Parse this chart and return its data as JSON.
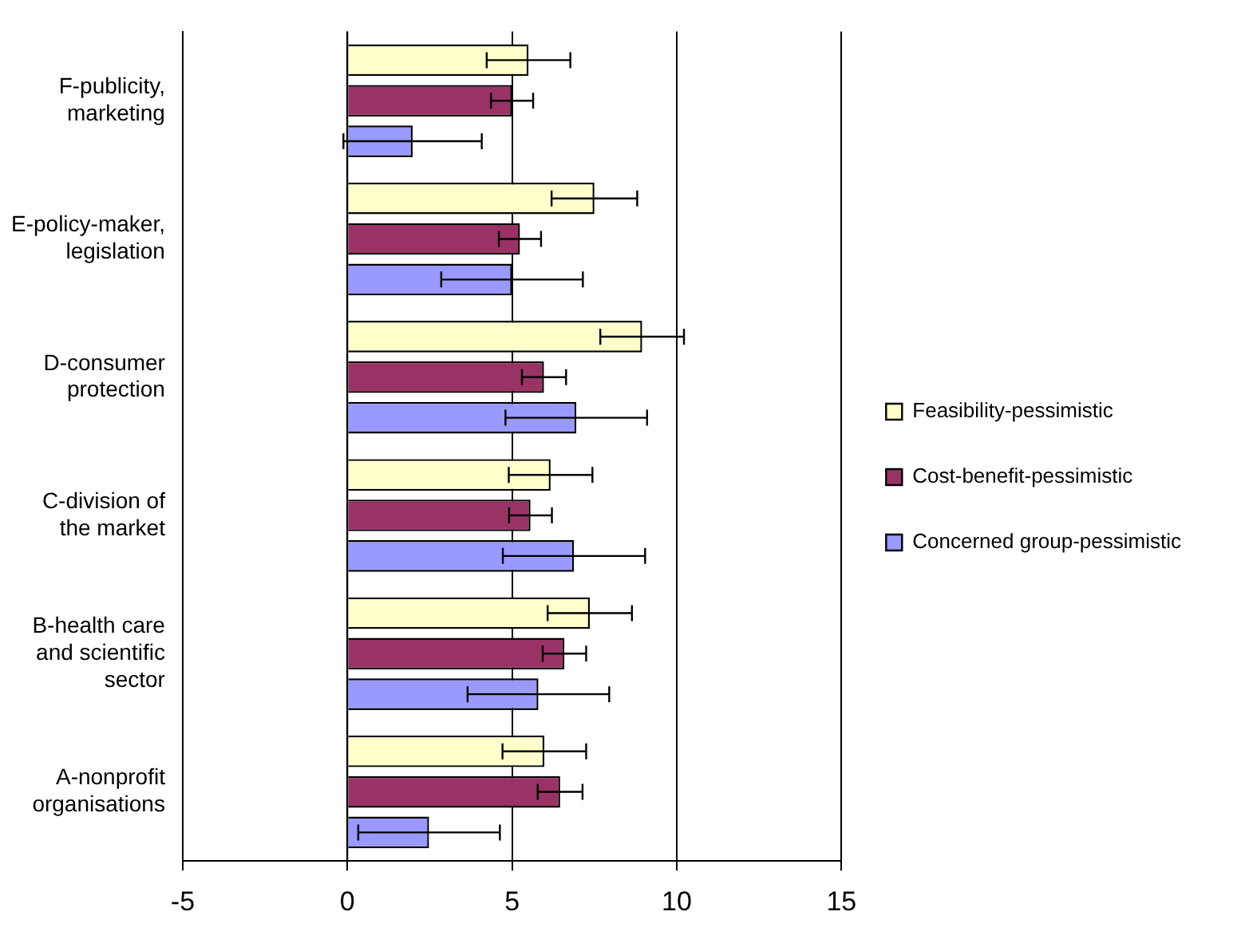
{
  "chart_data": {
    "type": "bar",
    "orientation": "horizontal",
    "categories": [
      "F-publicity, marketing",
      "E-policy-maker, legislation",
      "D-consumer protection",
      "C-division of the market",
      "B-health care and scientific sector",
      "A-nonprofit organisations"
    ],
    "series": [
      {
        "name": "Feasibility-pessimistic",
        "color": "#ffffcc",
        "values": [
          5.5,
          7.5,
          8.95,
          6.17,
          7.36,
          5.98
        ],
        "errors": [
          1.27,
          1.3,
          1.27,
          1.27,
          1.28,
          1.27
        ]
      },
      {
        "name": "Cost-benefit-pessimistic",
        "color": "#993366",
        "values": [
          5.0,
          5.24,
          5.97,
          5.56,
          6.59,
          6.46
        ],
        "errors": [
          0.64,
          0.64,
          0.67,
          0.65,
          0.66,
          0.68
        ]
      },
      {
        "name": "Concerned group-pessimistic",
        "color": "#9999ff",
        "values": [
          1.98,
          5.0,
          6.95,
          6.88,
          5.8,
          2.48
        ],
        "errors": [
          2.1,
          2.15,
          2.15,
          2.16,
          2.15,
          2.15
        ]
      }
    ],
    "xlim": [
      -5,
      15
    ],
    "xticks": [
      -5,
      0,
      5,
      10,
      15
    ],
    "grid": "x",
    "legend": "right"
  }
}
